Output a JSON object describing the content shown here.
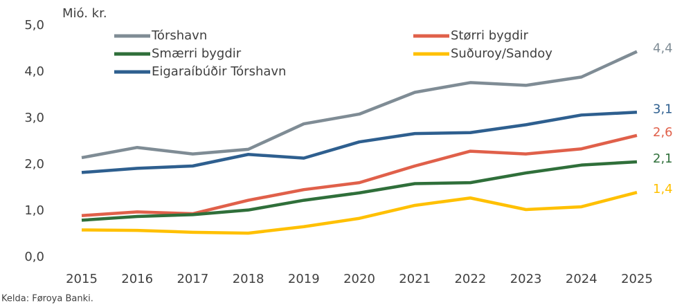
{
  "chart_data": {
    "type": "line",
    "y_axis_label": "Mió. kr.",
    "source": "Kelda: Føroya Banki.",
    "categories": [
      "2015",
      "2016",
      "2017",
      "2018",
      "2019",
      "2020",
      "2021",
      "2022",
      "2023",
      "2024",
      "2025"
    ],
    "ylim": [
      0,
      5
    ],
    "yticks": [
      {
        "value": 0,
        "label": "0,0"
      },
      {
        "value": 1,
        "label": "1,0"
      },
      {
        "value": 2,
        "label": "2,0"
      },
      {
        "value": 3,
        "label": "3,0"
      },
      {
        "value": 4,
        "label": "4,0"
      },
      {
        "value": 5,
        "label": "5,0"
      }
    ],
    "grid": false,
    "legend": "top",
    "series": [
      {
        "name": "Tórshavn",
        "color": "#7f8c95",
        "values": [
          2.15,
          2.37,
          2.23,
          2.33,
          2.88,
          3.09,
          3.56,
          3.77,
          3.71,
          3.89,
          4.44
        ],
        "value_labels": [
          null,
          null,
          null,
          null,
          null,
          null,
          null,
          null,
          null,
          null,
          "4,4"
        ]
      },
      {
        "name": "Størri bygdir",
        "color": "#e0604a",
        "values": [
          0.9,
          0.98,
          0.94,
          1.23,
          1.46,
          1.61,
          1.97,
          2.29,
          2.23,
          2.34,
          2.63
        ],
        "value_labels": [
          null,
          null,
          null,
          null,
          null,
          null,
          null,
          null,
          null,
          null,
          "2,6"
        ]
      },
      {
        "name": "Smærri bygdir",
        "color": "#2f6f3a",
        "values": [
          0.8,
          0.88,
          0.92,
          1.02,
          1.23,
          1.39,
          1.59,
          1.61,
          1.82,
          1.99,
          2.06
        ],
        "value_labels": [
          null,
          null,
          null,
          null,
          null,
          null,
          null,
          null,
          null,
          null,
          "2,1"
        ]
      },
      {
        "name": "Suðuroy/Sandoy",
        "color": "#ffc000",
        "values": [
          0.59,
          0.58,
          0.54,
          0.52,
          0.66,
          0.84,
          1.12,
          1.28,
          1.03,
          1.09,
          1.4
        ],
        "value_labels": [
          null,
          null,
          null,
          null,
          null,
          null,
          null,
          null,
          null,
          null,
          "1,4"
        ]
      },
      {
        "name": "Eigaraíbúðir Tórshavn",
        "color": "#2e5f8f",
        "values": [
          1.83,
          1.92,
          1.97,
          2.22,
          2.14,
          2.49,
          2.67,
          2.69,
          2.86,
          3.07,
          3.13
        ],
        "value_labels": [
          null,
          null,
          null,
          null,
          null,
          null,
          null,
          null,
          null,
          null,
          "3,1"
        ]
      }
    ]
  }
}
